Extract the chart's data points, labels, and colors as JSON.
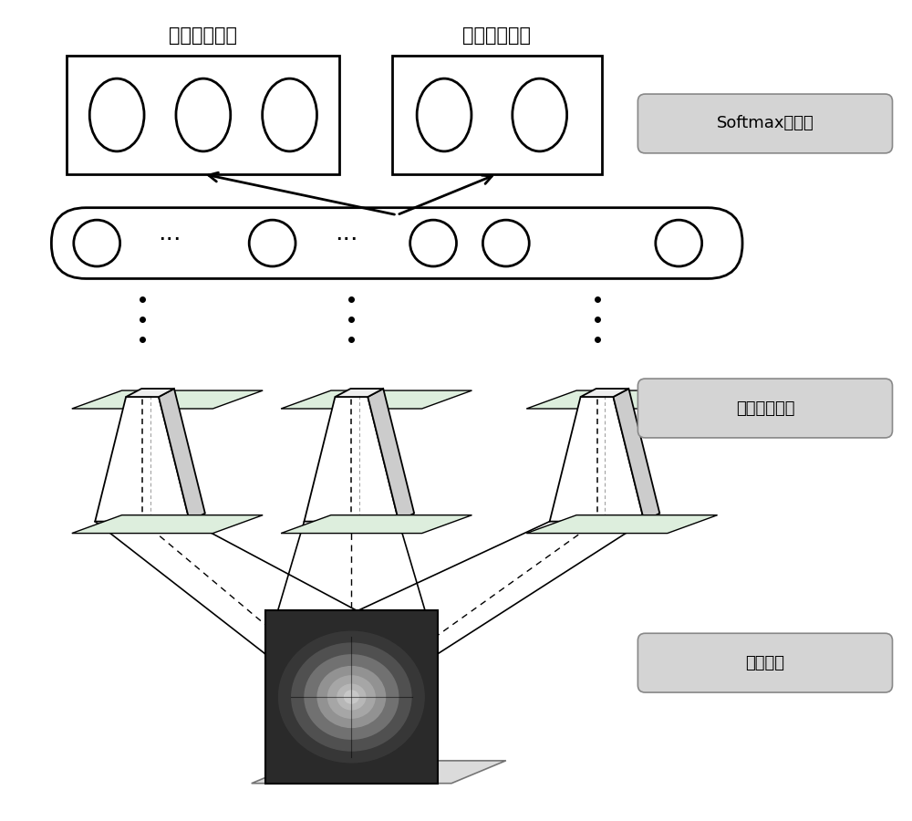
{
  "bg_color": "#ffffff",
  "label_softmax": "Softmax分类器",
  "label_cnn": "卷积神经网络",
  "label_cell": "细胞图片",
  "label_three": "三分类次任务",
  "label_two": "二分类主任务",
  "font_size_label": 15,
  "font_size_side": 13,
  "font_size_dots": 20
}
